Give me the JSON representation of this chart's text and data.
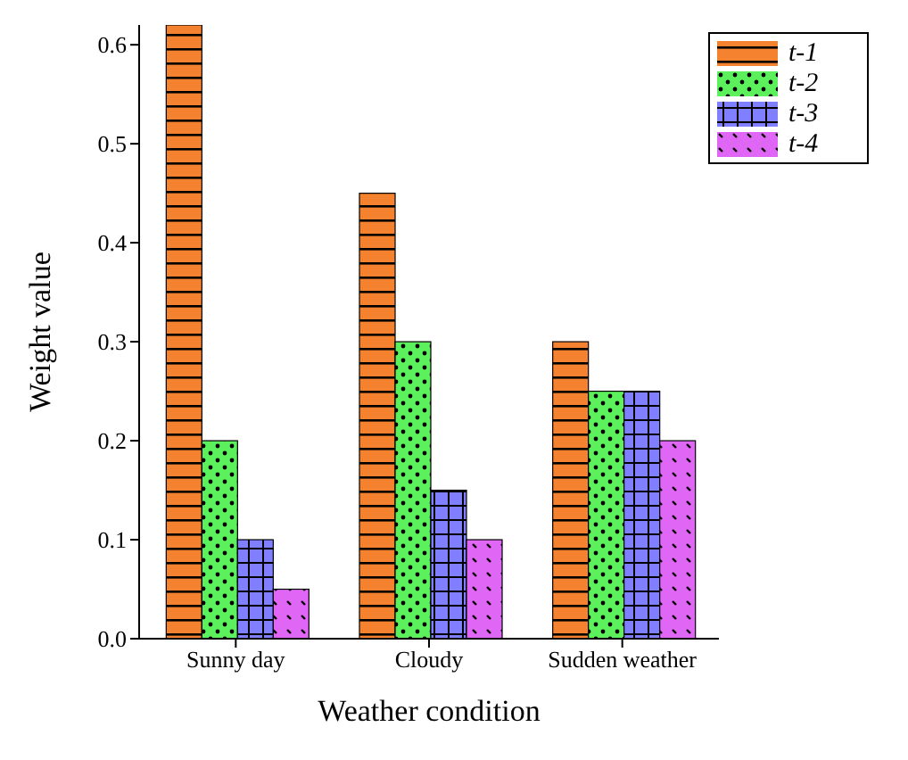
{
  "chart_data": {
    "type": "bar",
    "xlabel": "Weather condition",
    "ylabel": "Weight value",
    "categories": [
      "Sunny day",
      "Cloudy",
      "Sudden weather"
    ],
    "series": [
      {
        "name": "t-1",
        "color": "#f5822e",
        "values": [
          0.62,
          0.45,
          0.3
        ]
      },
      {
        "name": "t-2",
        "color": "#5cf05c",
        "values": [
          0.2,
          0.3,
          0.25
        ]
      },
      {
        "name": "t-3",
        "color": "#7f7fff",
        "values": [
          0.1,
          0.15,
          0.25
        ]
      },
      {
        "name": "t-4",
        "color": "#e066f5",
        "values": [
          0.05,
          0.1,
          0.2
        ]
      }
    ],
    "ylim": [
      0,
      0.62
    ],
    "yticks": [
      {
        "value": 0,
        "label": "0.0"
      },
      {
        "value": 0.1,
        "label": "0.1"
      },
      {
        "value": 0.2,
        "label": "0.2"
      },
      {
        "value": 0.3,
        "label": "0.3"
      },
      {
        "value": 0.4,
        "label": "0.4"
      },
      {
        "value": 0.5,
        "label": "0.5"
      },
      {
        "value": 0.6,
        "label": "0.6"
      }
    ],
    "grid": false,
    "legend": "top right"
  }
}
